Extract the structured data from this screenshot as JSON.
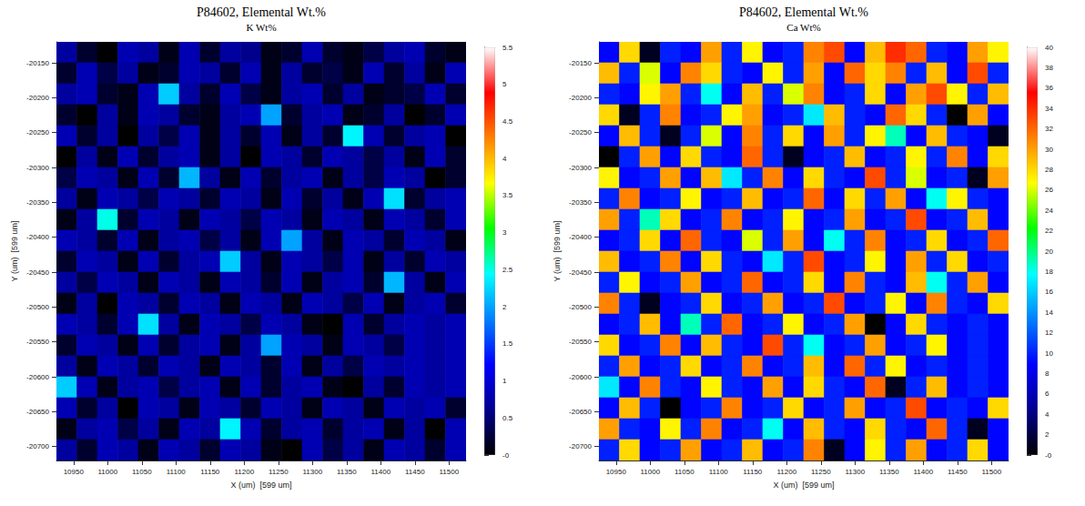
{
  "chart_data": [
    {
      "type": "heatmap",
      "title": "P84602, Elemental Wt.%",
      "subtitle": "K Wt%",
      "x_label": "X (um)  [599 um]",
      "y_label": "Y (um)  [599 um]",
      "xlim": [
        10925,
        11525
      ],
      "xticks": [
        10950,
        11000,
        11050,
        11100,
        11150,
        11200,
        11250,
        11300,
        11350,
        11400,
        11450,
        11500
      ],
      "ylim": [
        -20720,
        -20120
      ],
      "yticks": [
        -20700,
        -20650,
        -20600,
        -20550,
        -20500,
        -20450,
        -20400,
        -20350,
        -20300,
        -20250,
        -20200,
        -20150
      ],
      "grid": false,
      "x": [
        10940,
        10970,
        11000,
        11030,
        11060,
        11090,
        11120,
        11150,
        11180,
        11210,
        11240,
        11270,
        11300,
        11330,
        11360,
        11390,
        11420,
        11450,
        11480,
        11510
      ],
      "y": [
        -20135,
        -20165,
        -20195,
        -20225,
        -20255,
        -20285,
        -20315,
        -20345,
        -20375,
        -20405,
        -20435,
        -20465,
        -20495,
        -20525,
        -20555,
        -20585,
        -20615,
        -20645,
        -20675,
        -20705
      ],
      "cells": [
        [
          0.7,
          0.2,
          0,
          0.8,
          0.7,
          0.1,
          0.8,
          0.2,
          0.7,
          0.6,
          0.1,
          0.2,
          0.8,
          0.2,
          0.1,
          0.3,
          0.7,
          0.8,
          0.2,
          0.1
        ],
        [
          0.2,
          0.8,
          0.3,
          0.7,
          0.1,
          0.2,
          0.8,
          0.7,
          0.2,
          0.8,
          0.1,
          0.7,
          0.2,
          0.3,
          0.1,
          0.8,
          0.2,
          0.7,
          0.1,
          0.8
        ],
        [
          0.7,
          0.8,
          0.2,
          0.1,
          0.8,
          2.2,
          0.7,
          0.2,
          0.8,
          0.3,
          0.1,
          0.7,
          0.8,
          0.2,
          0.7,
          0.1,
          0.2,
          0.3,
          0.8,
          0.2
        ],
        [
          0.2,
          0,
          0.7,
          0.1,
          0.8,
          0.7,
          0.2,
          0.1,
          0.7,
          0.8,
          2.0,
          0.2,
          0.7,
          0.8,
          0.1,
          0.2,
          0.7,
          0,
          0.2,
          0.8
        ],
        [
          0.8,
          0.2,
          0.7,
          0,
          0.7,
          0.3,
          0.8,
          0.1,
          0.7,
          0.2,
          0.8,
          0.1,
          0.7,
          0.2,
          2.4,
          0.8,
          0.2,
          0.7,
          0.8,
          0
        ],
        [
          0,
          0.7,
          0.1,
          0.8,
          0.2,
          0.7,
          0.8,
          0.1,
          0.7,
          0,
          0.8,
          0.7,
          0.2,
          0.8,
          0.7,
          0.3,
          0.7,
          0.1,
          0.8,
          0.2
        ],
        [
          0.3,
          0.8,
          0.7,
          0.1,
          0.8,
          0.2,
          2.1,
          0.7,
          0.1,
          0.8,
          0.2,
          0.7,
          0.8,
          0.1,
          0.7,
          0.3,
          0.8,
          0.7,
          0,
          0.2
        ],
        [
          0.7,
          0.1,
          0.8,
          0.7,
          0.3,
          0.8,
          0.7,
          0.2,
          0.8,
          0.7,
          0.1,
          0.8,
          0.2,
          0.7,
          0.1,
          0.8,
          2.3,
          0.2,
          0.7,
          0.8
        ],
        [
          0.1,
          0.7,
          2.5,
          0.2,
          0.8,
          0.7,
          0.1,
          0.8,
          0.7,
          0.3,
          0.8,
          0.7,
          0.1,
          0.8,
          0.7,
          0.1,
          0.8,
          0.7,
          0.2,
          0.8
        ],
        [
          0.8,
          0.7,
          0.2,
          0.8,
          0.1,
          0.7,
          0.8,
          0.3,
          0.7,
          0.1,
          0.8,
          2.0,
          0.7,
          0.1,
          0.8,
          0.7,
          0.2,
          0.8,
          0.7,
          0.1
        ],
        [
          0.2,
          0.8,
          0.7,
          0.1,
          0.8,
          0.2,
          0.7,
          0.8,
          2.2,
          0.7,
          0.1,
          0.8,
          0.7,
          0.3,
          0.8,
          0.1,
          0.7,
          0.2,
          0.8,
          0.7
        ],
        [
          0.7,
          0.3,
          0.8,
          0.7,
          0.1,
          0.8,
          0.7,
          0.1,
          0.8,
          0.7,
          0.2,
          0.8,
          0.1,
          0.7,
          0.8,
          0.2,
          2.1,
          0.7,
          0.1,
          0.8
        ],
        [
          0.1,
          0.7,
          0,
          0.8,
          0.7,
          0.2,
          0.8,
          0.7,
          0.1,
          0.8,
          0.7,
          0.1,
          0.8,
          0.7,
          0.3,
          0.8,
          0.1,
          0.7,
          0.8,
          0.2
        ],
        [
          0.8,
          0.7,
          0.2,
          0.8,
          2.3,
          0.7,
          0.1,
          0.8,
          0.7,
          0.3,
          0.8,
          0.7,
          0.1,
          0,
          0.8,
          0.2,
          0.7,
          0.8,
          0.7,
          0.8
        ],
        [
          0.2,
          0.8,
          0.7,
          0.1,
          0.8,
          0.2,
          0.7,
          0.8,
          0.1,
          0.7,
          2.0,
          0.8,
          0.7,
          0.1,
          0.8,
          0.7,
          0.3,
          0.8,
          0.7,
          0.8
        ],
        [
          0.7,
          0.1,
          0.8,
          0.7,
          0.2,
          0.8,
          0.7,
          0.1,
          0.8,
          0.7,
          0.2,
          0.8,
          0.1,
          0.7,
          0.3,
          0.8,
          0.7,
          0.8,
          0.7,
          0.8
        ],
        [
          2.2,
          0.8,
          0.1,
          0.7,
          0.8,
          0.3,
          0.7,
          0.8,
          0.1,
          0.8,
          0.2,
          0.7,
          0.8,
          0.1,
          0,
          0.7,
          0.2,
          0.8,
          0.7,
          0.8
        ],
        [
          0.8,
          0.2,
          0.7,
          0,
          0.8,
          0.7,
          0.1,
          0.8,
          0.7,
          0.2,
          0.8,
          0.7,
          0.1,
          0.8,
          0.7,
          0.1,
          0.8,
          0.7,
          0.8,
          0.2
        ],
        [
          0.1,
          0.7,
          0.8,
          0.3,
          0.7,
          0.1,
          0.8,
          0.7,
          2.4,
          0.8,
          0.2,
          0.7,
          0.8,
          0.2,
          0.7,
          0.8,
          0.1,
          0.7,
          0,
          0.8
        ],
        [
          0.7,
          0.2,
          0.8,
          0.7,
          0.1,
          0.8,
          0.7,
          0.2,
          0.8,
          0.7,
          0.1,
          0,
          0.8,
          0.3,
          0.7,
          0.1,
          0.8,
          0.7,
          0.2,
          0.8
        ]
      ],
      "colorbar_lim": [
        0,
        5.5
      ],
      "colorbar_ticks": [
        {
          "value": 0,
          "label": "-0"
        },
        0.5,
        1,
        1.5,
        2,
        2.5,
        3,
        3.5,
        4,
        4.5,
        5,
        5.5
      ]
    },
    {
      "type": "heatmap",
      "title": "P84602, Elemental Wt.%",
      "subtitle": "Ca Wt%",
      "x_label": "X (um)  [599 um]",
      "y_label": "Y (um)  [599 um]",
      "xlim": [
        10925,
        11525
      ],
      "xticks": [
        10950,
        11000,
        11050,
        11100,
        11150,
        11200,
        11250,
        11300,
        11350,
        11400,
        11450,
        11500
      ],
      "ylim": [
        -20720,
        -20120
      ],
      "yticks": [
        -20700,
        -20650,
        -20600,
        -20550,
        -20500,
        -20450,
        -20400,
        -20350,
        -20300,
        -20250,
        -20200,
        -20150
      ],
      "grid": false,
      "x": [
        10940,
        10970,
        11000,
        11030,
        11060,
        11090,
        11120,
        11150,
        11180,
        11210,
        11240,
        11270,
        11300,
        11330,
        11360,
        11390,
        11420,
        11450,
        11480,
        11510
      ],
      "y": [
        -20135,
        -20165,
        -20195,
        -20225,
        -20255,
        -20285,
        -20315,
        -20345,
        -20375,
        -20405,
        -20435,
        -20465,
        -20495,
        -20525,
        -20555,
        -20585,
        -20615,
        -20645,
        -20675,
        -20705
      ],
      "cells": [
        [
          9,
          28,
          1,
          10,
          9,
          30,
          10,
          27,
          9,
          10,
          31,
          33,
          9,
          29,
          34,
          32,
          10,
          9,
          30,
          27
        ],
        [
          29,
          10,
          26,
          9,
          31,
          28,
          10,
          9,
          27,
          10,
          30,
          9,
          32,
          28,
          31,
          10,
          29,
          9,
          33,
          10
        ],
        [
          10,
          9,
          27,
          30,
          10,
          18,
          9,
          29,
          10,
          26,
          31,
          9,
          10,
          28,
          9,
          30,
          33,
          27,
          10,
          29
        ],
        [
          28,
          1,
          10,
          31,
          9,
          10,
          27,
          30,
          9,
          10,
          17,
          29,
          10,
          9,
          32,
          28,
          10,
          0,
          30,
          9
        ],
        [
          9,
          29,
          10,
          1,
          10,
          26,
          9,
          31,
          10,
          28,
          9,
          30,
          10,
          27,
          19,
          9,
          29,
          10,
          9,
          1
        ],
        [
          0,
          10,
          30,
          9,
          28,
          10,
          9,
          32,
          10,
          1,
          9,
          10,
          29,
          9,
          10,
          27,
          10,
          31,
          9,
          28
        ],
        [
          27,
          9,
          10,
          30,
          9,
          29,
          17,
          10,
          31,
          9,
          28,
          10,
          9,
          33,
          10,
          26,
          9,
          10,
          1,
          30
        ],
        [
          10,
          31,
          9,
          10,
          27,
          9,
          10,
          29,
          9,
          10,
          32,
          9,
          28,
          10,
          30,
          9,
          18,
          27,
          10,
          9
        ],
        [
          30,
          10,
          19,
          28,
          9,
          10,
          31,
          9,
          10,
          27,
          9,
          10,
          30,
          9,
          10,
          33,
          9,
          10,
          29,
          9
        ],
        [
          9,
          10,
          28,
          9,
          32,
          10,
          9,
          26,
          10,
          30,
          9,
          18,
          10,
          31,
          9,
          10,
          28,
          9,
          10,
          32
        ],
        [
          29,
          9,
          10,
          31,
          9,
          28,
          10,
          9,
          17,
          10,
          33,
          9,
          10,
          27,
          9,
          30,
          10,
          28,
          9,
          10
        ],
        [
          10,
          27,
          9,
          10,
          30,
          9,
          10,
          32,
          9,
          10,
          28,
          9,
          31,
          10,
          9,
          29,
          18,
          10,
          30,
          9
        ],
        [
          31,
          10,
          1,
          9,
          10,
          28,
          9,
          10,
          30,
          9,
          10,
          33,
          9,
          10,
          27,
          9,
          31,
          10,
          9,
          28
        ],
        [
          9,
          10,
          29,
          9,
          19,
          10,
          32,
          9,
          10,
          27,
          9,
          10,
          30,
          0,
          9,
          28,
          10,
          9,
          10,
          9
        ],
        [
          28,
          9,
          10,
          31,
          9,
          29,
          10,
          9,
          33,
          10,
          18,
          9,
          10,
          30,
          9,
          10,
          27,
          9,
          10,
          9
        ],
        [
          10,
          30,
          9,
          10,
          28,
          9,
          10,
          31,
          9,
          10,
          29,
          9,
          32,
          10,
          27,
          9,
          10,
          9,
          10,
          9
        ],
        [
          17,
          9,
          31,
          10,
          9,
          27,
          10,
          9,
          30,
          9,
          28,
          10,
          9,
          32,
          1,
          10,
          29,
          9,
          10,
          9
        ],
        [
          9,
          29,
          10,
          0,
          9,
          10,
          31,
          9,
          10,
          28,
          9,
          10,
          30,
          9,
          10,
          33,
          9,
          10,
          9,
          28
        ],
        [
          30,
          10,
          9,
          27,
          10,
          31,
          9,
          10,
          18,
          9,
          29,
          10,
          9,
          28,
          10,
          9,
          32,
          10,
          1,
          9
        ],
        [
          10,
          28,
          9,
          10,
          30,
          9,
          10,
          29,
          9,
          10,
          31,
          1,
          9,
          27,
          10,
          30,
          9,
          10,
          28,
          9
        ]
      ],
      "colorbar_lim": [
        0,
        40
      ],
      "colorbar_ticks": [
        {
          "value": 0,
          "label": "-0"
        },
        2,
        4,
        6,
        8,
        10,
        12,
        14,
        16,
        18,
        20,
        22,
        24,
        26,
        28,
        30,
        32,
        34,
        36,
        38,
        40
      ]
    }
  ]
}
